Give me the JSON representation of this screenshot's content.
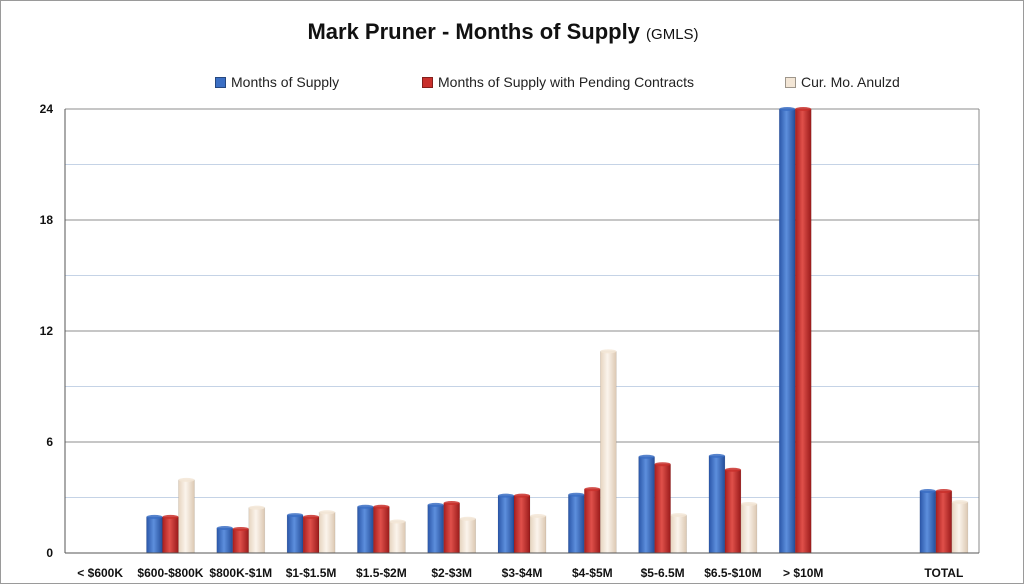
{
  "chart_data": {
    "type": "bar",
    "title": "Mark Pruner - Months of Supply",
    "title_suffix": "(GMLS)",
    "xlabel": "",
    "ylabel": "",
    "ylim": [
      0,
      24
    ],
    "yticks": [
      0,
      6,
      12,
      18,
      24
    ],
    "grid": true,
    "legend_position": "top",
    "categories": [
      "< $600K",
      "$600-$800K",
      "$800K-$1M",
      "$1-$1.5M",
      "$1.5-$2M",
      "$2-$3M",
      "$3-$4M",
      "$4-$5M",
      "$5-6.5M",
      "$6.5-$10M",
      "> $10M",
      "",
      "TOTAL"
    ],
    "series": [
      {
        "name": "Months of Supply",
        "color": "#3b6fc4",
        "values": [
          null,
          1.95,
          1.35,
          2.05,
          2.5,
          2.6,
          3.1,
          3.15,
          5.2,
          5.25,
          24,
          null,
          3.35
        ]
      },
      {
        "name": "Months of Supply with Pending Contracts",
        "color": "#c9302c",
        "values": [
          null,
          1.95,
          1.3,
          1.95,
          2.5,
          2.7,
          3.1,
          3.45,
          4.8,
          4.5,
          24,
          null,
          3.35
        ]
      },
      {
        "name": "Cur. Mo. Anulzd",
        "color": "#f3e6d6",
        "values": [
          null,
          3.95,
          2.45,
          2.2,
          1.7,
          1.85,
          2.0,
          10.9,
          2.05,
          2.65,
          null,
          null,
          2.75
        ]
      }
    ]
  }
}
